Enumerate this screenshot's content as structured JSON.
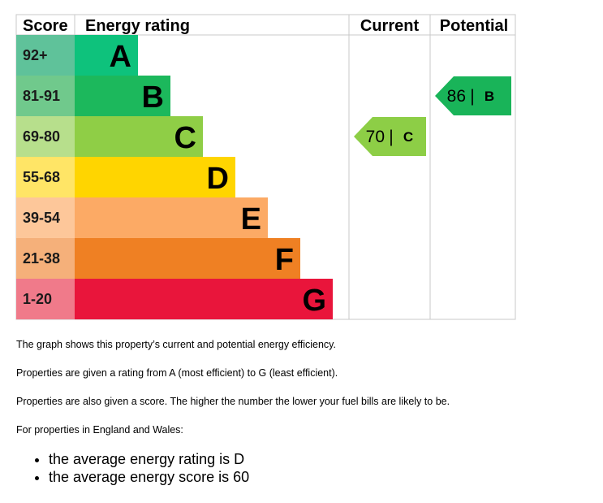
{
  "headers": {
    "score": "Score",
    "energy_rating": "Energy rating",
    "current": "Current",
    "potential": "Potential"
  },
  "chart_data": {
    "type": "bar",
    "bands": [
      {
        "letter": "A",
        "range": "92+",
        "min": 92,
        "max": 100,
        "color": "#008054",
        "score_bg": "#5fc29a",
        "bar_color": "#0ec27c"
      },
      {
        "letter": "B",
        "range": "81-91",
        "min": 81,
        "max": 91,
        "color": "#19b459",
        "score_bg": "#70c98c",
        "bar_color": "#1cb85c"
      },
      {
        "letter": "C",
        "range": "69-80",
        "min": 69,
        "max": 80,
        "color": "#8dce46",
        "score_bg": "#b7df8c",
        "bar_color": "#8fce46"
      },
      {
        "letter": "D",
        "range": "55-68",
        "min": 55,
        "max": 68,
        "color": "#ffd500",
        "score_bg": "#ffe566",
        "bar_color": "#ffd500"
      },
      {
        "letter": "E",
        "range": "39-54",
        "min": 39,
        "max": 54,
        "color": "#fcaa65",
        "score_bg": "#fdc79a",
        "bar_color": "#fcaa65"
      },
      {
        "letter": "F",
        "range": "21-38",
        "min": 21,
        "max": 38,
        "color": "#ef8023",
        "score_bg": "#f5b07a",
        "bar_color": "#ef8023"
      },
      {
        "letter": "G",
        "range": "1-20",
        "min": 1,
        "max": 20,
        "color": "#e9153b",
        "score_bg": "#f07a8a",
        "bar_color": "#e9153b"
      }
    ],
    "current": {
      "score": 70,
      "band": "C",
      "label_score": "70",
      "label_band": "C",
      "color": "#8dce46"
    },
    "potential": {
      "score": 86,
      "band": "B",
      "label_score": "86",
      "label_band": "B",
      "color": "#19b459"
    },
    "separator": "|"
  },
  "text": {
    "p1": "The graph shows this property’s current and potential energy efficiency.",
    "p2": "Properties are given a rating from A (most efficient) to G (least efficient).",
    "p3": "Properties are also given a score. The higher the number the lower your fuel bills are likely to be.",
    "p4": "For properties in England and Wales:",
    "bullets": [
      "the average energy rating is D",
      "the average energy score is 60"
    ]
  }
}
